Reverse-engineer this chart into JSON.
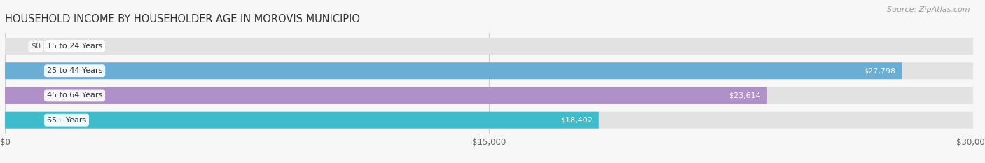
{
  "title": "HOUSEHOLD INCOME BY HOUSEHOLDER AGE IN MOROVIS MUNICIPIO",
  "source": "Source: ZipAtlas.com",
  "categories": [
    "15 to 24 Years",
    "25 to 44 Years",
    "45 to 64 Years",
    "65+ Years"
  ],
  "values": [
    0,
    27798,
    23614,
    18402
  ],
  "labels": [
    "$0",
    "$27,798",
    "$23,614",
    "$18,402"
  ],
  "bar_colors": [
    "#f08080",
    "#6aaed6",
    "#b090c8",
    "#3dbccc"
  ],
  "bar_bg_color": "#e2e2e2",
  "xlim": [
    0,
    30000
  ],
  "xticks": [
    0,
    15000,
    30000
  ],
  "xtick_labels": [
    "$0",
    "$15,000",
    "$30,000"
  ],
  "title_fontsize": 10.5,
  "source_fontsize": 8,
  "background_color": "#f7f7f7",
  "bar_height": 0.68,
  "label_outside_color": "#555555",
  "label_inside_color": "#ffffff",
  "grid_color": "#cccccc",
  "text_color": "#444444"
}
